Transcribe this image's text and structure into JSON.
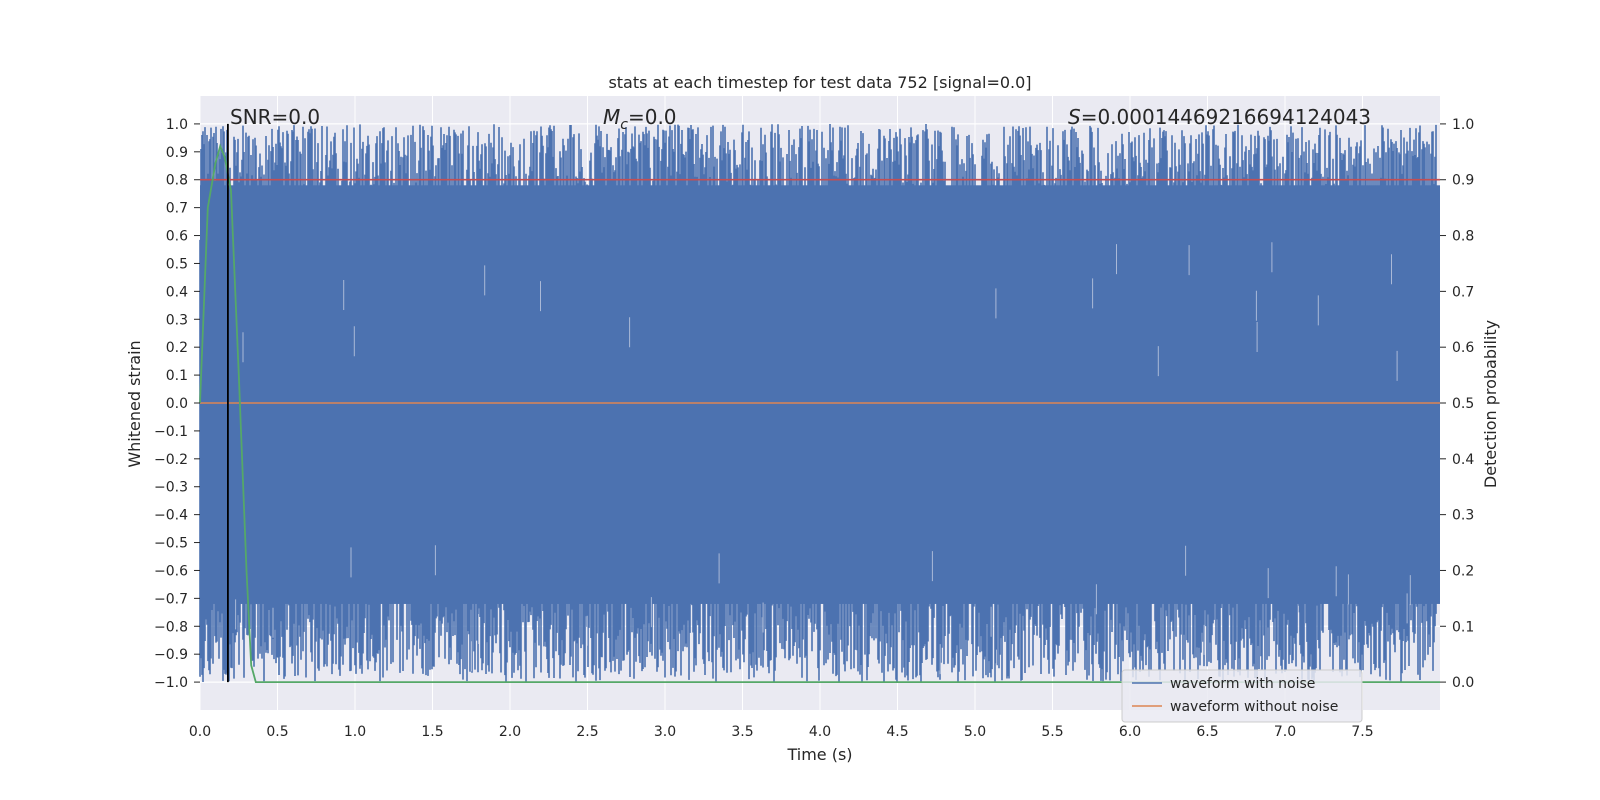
{
  "chart_data": {
    "type": "line",
    "title": "stats at each timestep for test data 752 [signal=0.0]",
    "xlabel": "Time (s)",
    "ylabel": "Whitened strain",
    "y2label": "Detection probability",
    "xlim": [
      0.0,
      8.0
    ],
    "ylim": [
      -1.1,
      1.1
    ],
    "y2lim": [
      -0.05,
      1.05
    ],
    "x_ticks": [
      "0.0",
      "0.5",
      "1.0",
      "1.5",
      "2.0",
      "2.5",
      "3.0",
      "3.5",
      "4.0",
      "4.5",
      "5.0",
      "5.5",
      "6.0",
      "6.5",
      "7.0",
      "7.5"
    ],
    "y_ticks": [
      "1.0",
      "0.9",
      "0.8",
      "0.7",
      "0.6",
      "0.5",
      "0.4",
      "0.3",
      "0.2",
      "0.1",
      "0.0",
      "−0.1",
      "−0.2",
      "−0.3",
      "−0.4",
      "−0.5",
      "−0.6",
      "−0.7",
      "−0.8",
      "−0.9",
      "−1.0"
    ],
    "y2_ticks": [
      "1.0",
      "0.9",
      "0.8",
      "0.7",
      "0.6",
      "0.5",
      "0.4",
      "0.3",
      "0.2",
      "0.1",
      "0.0"
    ],
    "grid": true,
    "legend_position": "lower-right",
    "annotations": {
      "snr_label": "SNR=0.0",
      "mc_symbol": "M",
      "mc_subscript": "c",
      "mc_value": "=0.0",
      "s_symbol": "S",
      "s_value": "=0.00014469216694124043"
    },
    "series": [
      {
        "name": "waveform with noise",
        "color": "#4c72b0",
        "description_range": [
          -1.0,
          1.0
        ],
        "note": "dense noise filling nearly the full y range over 0–8 s"
      },
      {
        "name": "waveform without noise",
        "color": "#dd8452",
        "values_constant": 0.0
      },
      {
        "axis": "right",
        "color": "#55a868",
        "x": [
          0.0,
          0.05,
          0.1,
          0.13,
          0.16,
          0.2,
          0.25,
          0.3,
          0.33,
          0.36,
          0.4,
          1.0,
          2.0,
          4.0,
          6.0,
          8.0
        ],
        "values": [
          0.5,
          0.85,
          0.93,
          0.96,
          0.94,
          0.88,
          0.55,
          0.2,
          0.03,
          0.0,
          0.0,
          0.0,
          0.0,
          0.0,
          0.0,
          0.0
        ]
      }
    ],
    "threshold_line": {
      "axis": "right",
      "value": 0.9,
      "color": "#c44e52"
    },
    "marker_line": {
      "x": 0.18,
      "color": "#000000"
    }
  }
}
